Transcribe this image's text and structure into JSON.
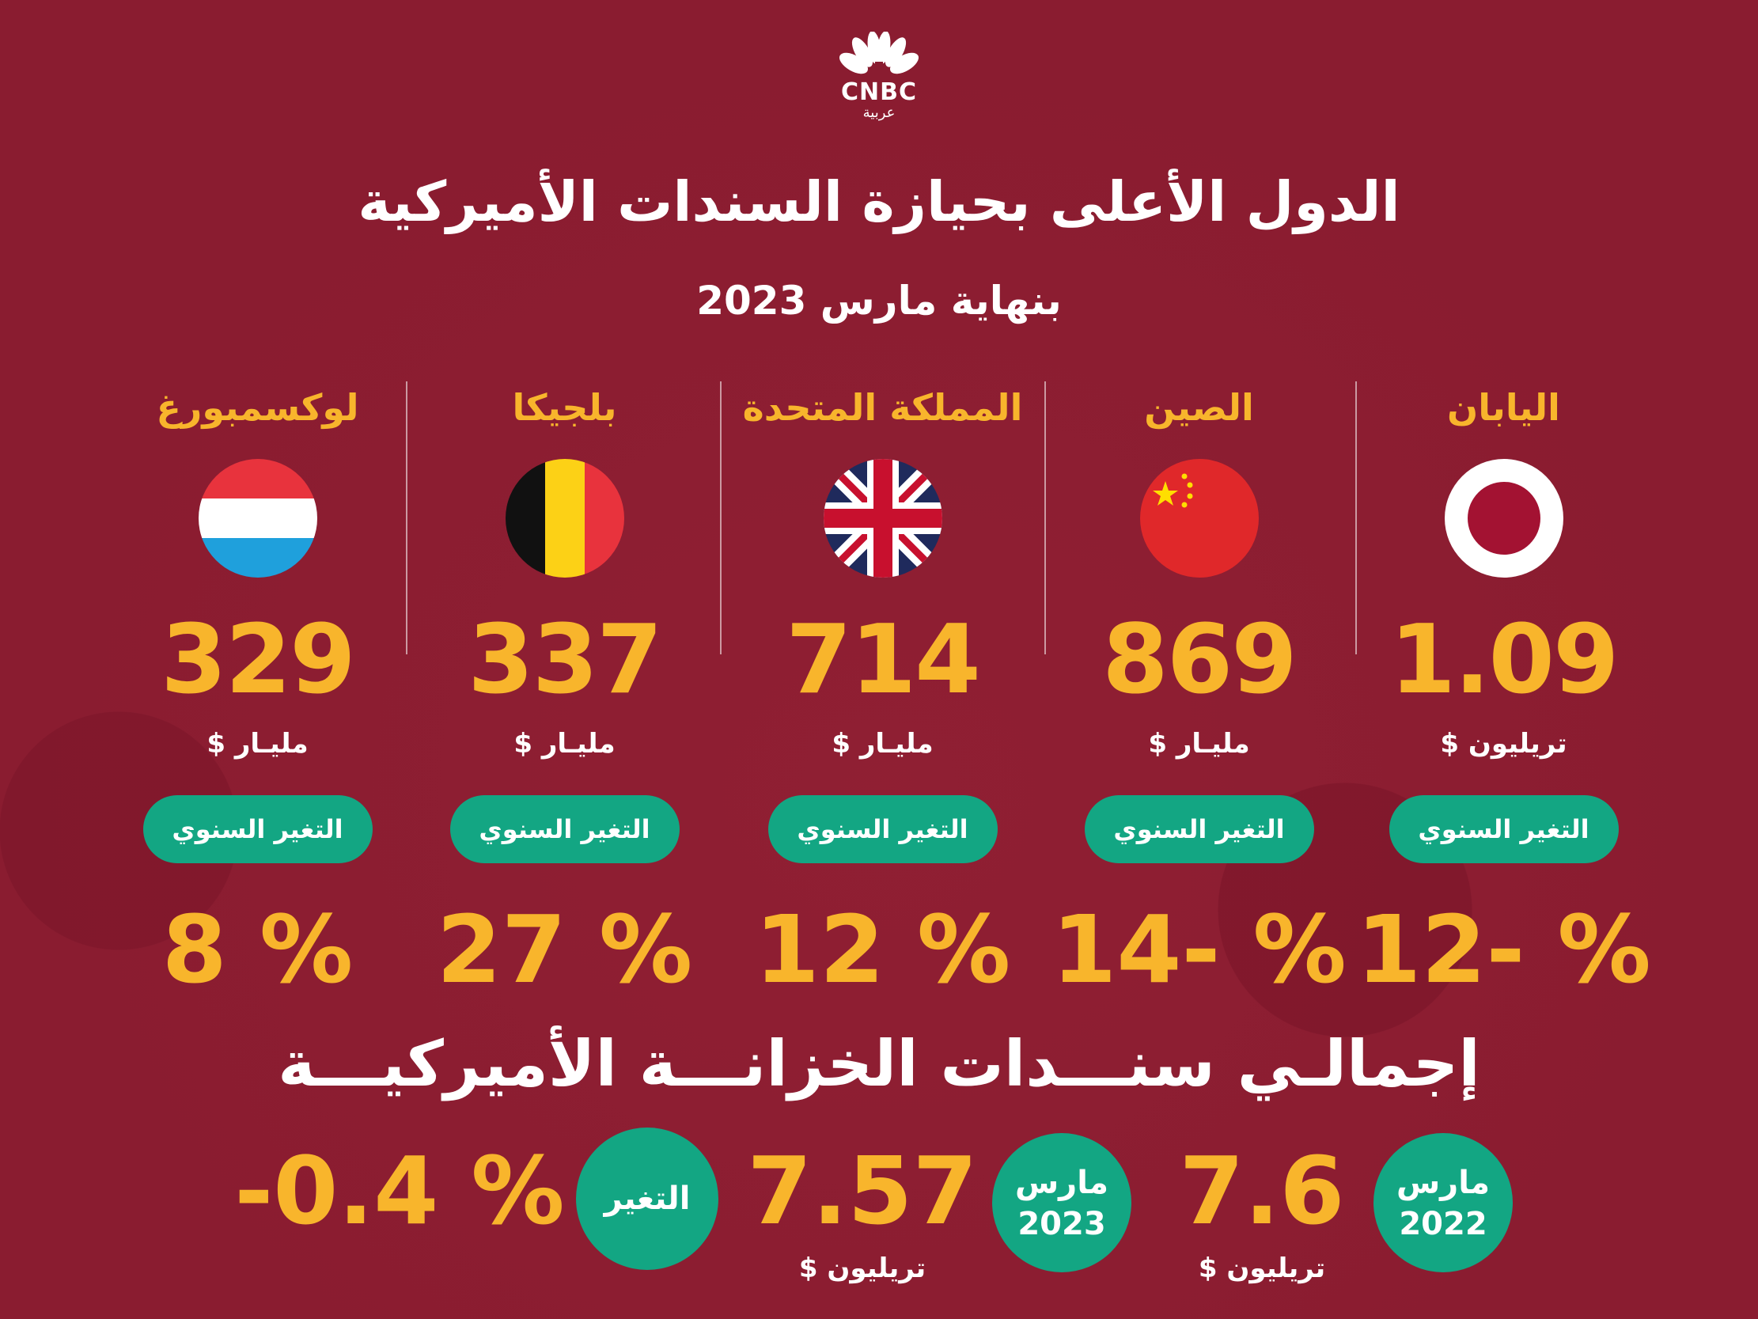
{
  "logo": {
    "brand": "CNBC",
    "sub": "عربية"
  },
  "title": "الدول الأعلى بحيازة السندات الأميركية",
  "subtitle": "بنهاية مارس 2023",
  "countries": [
    {
      "name": "اليابان",
      "value": "1.09",
      "unit": "تريليون $",
      "badge": "التغير السنوي",
      "change": "12- %"
    },
    {
      "name": "الصين",
      "value": "869",
      "unit": "مليـار $",
      "badge": "التغير السنوي",
      "change": "14- %"
    },
    {
      "name": "المملكة المتحدة",
      "value": "714",
      "unit": "مليـار $",
      "badge": "التغير السنوي",
      "change": "12 %"
    },
    {
      "name": "بلجيكا",
      "value": "337",
      "unit": "مليـار $",
      "badge": "التغير السنوي",
      "change": "27 %"
    },
    {
      "name": "لوكسمبورغ",
      "value": "329",
      "unit": "مليـار $",
      "badge": "التغير السنوي",
      "change": "8 %"
    }
  ],
  "total": {
    "title": "إجمالـي سنـــدات الخزانـــة الأميركيـــة",
    "y2022": {
      "month": "مارس",
      "year": "2022",
      "value": "7.6",
      "unit": "تريليون $"
    },
    "y2023": {
      "month": "مارس",
      "year": "2023",
      "value": "7.57",
      "unit": "تريليون $"
    },
    "change": {
      "label": "التغير",
      "value": "-0.4 %"
    }
  },
  "colors": {
    "background": "#8a1c30",
    "accent": "#f8b52c",
    "pill": "#13a683"
  }
}
